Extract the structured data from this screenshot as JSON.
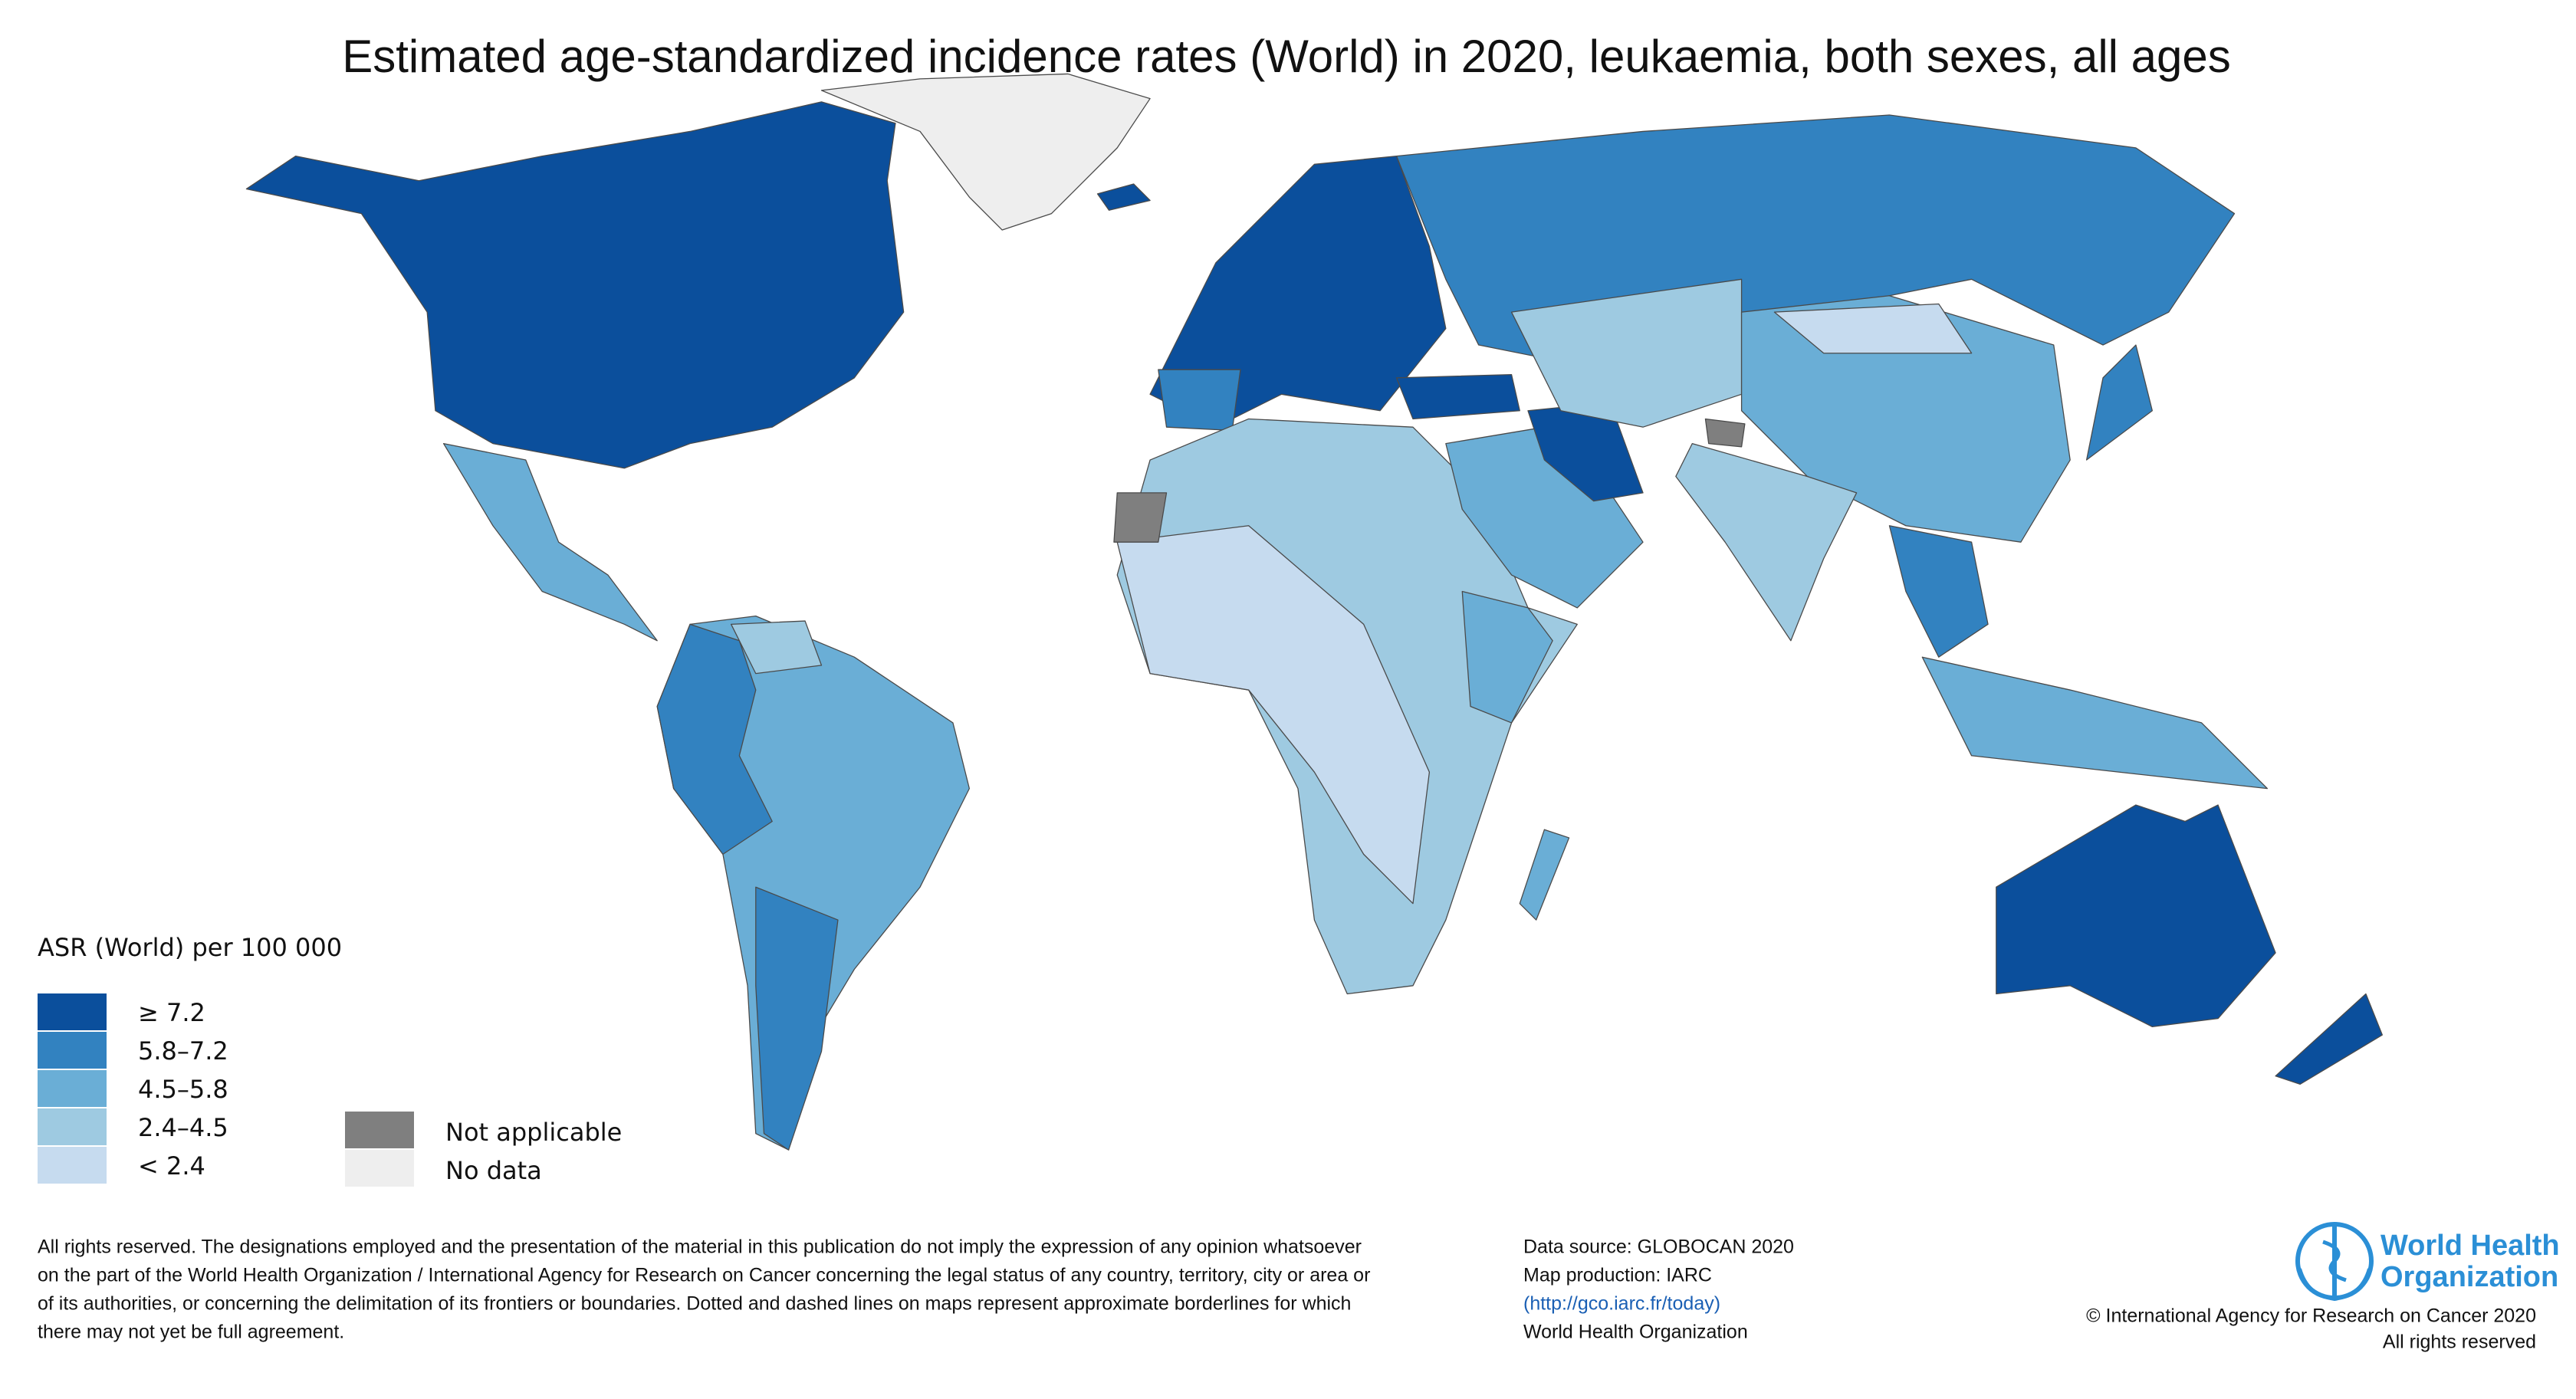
{
  "title": "Estimated age-standardized incidence rates (World) in 2020, leukaemia, both sexes, all ages",
  "legend": {
    "title": "ASR (World) per 100 000",
    "items": [
      {
        "label": "≥ 7.2",
        "color": "#0b4f9c"
      },
      {
        "label": "5.8–7.2",
        "color": "#3282c0"
      },
      {
        "label": "4.5–5.8",
        "color": "#6aaed6"
      },
      {
        "label": "2.4–4.5",
        "color": "#9ecae1"
      },
      {
        "label": "< 2.4",
        "color": "#c6dbef"
      }
    ],
    "extra": [
      {
        "label": "Not applicable",
        "color": "#7f7f7f"
      },
      {
        "label": "No data",
        "color": "#eeeeee"
      }
    ]
  },
  "disclaimer": [
    "All rights reserved. The designations employed and the presentation of the material in this publication do not imply the expression of any opinion whatsoever",
    "on the part of the World Health Organization / International Agency for Research on Cancer concerning the legal status of any country, territory, city or area or",
    "of its authorities, or concerning the delimitation of its frontiers or boundaries. Dotted and dashed lines on maps represent approximate borderlines for which",
    "there may not yet be full agreement."
  ],
  "source": [
    "Data source: GLOBOCAN 2020",
    "Map production: IARC",
    "(http://gco.iarc.fr/today)",
    "World Health Organization"
  ],
  "who": [
    "World Health",
    "Organization"
  ],
  "copyright": [
    "© International Agency for Research on Cancer 2020",
    "All rights reserved"
  ]
}
